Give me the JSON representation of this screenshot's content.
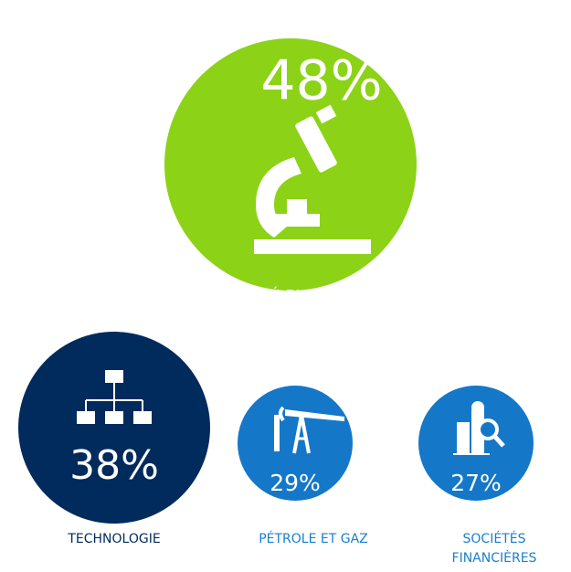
{
  "items": [
    {
      "value": "48%",
      "label": "SANTÉ PHARMA"
    },
    {
      "value": "38%",
      "label": "TECHNOLOGIE"
    },
    {
      "value": "29%",
      "label": "PÉTROLE ET GAZ"
    },
    {
      "value": "27%",
      "label": [
        "SOCIÉTÉS",
        "FINANCIÈRES"
      ]
    }
  ]
}
